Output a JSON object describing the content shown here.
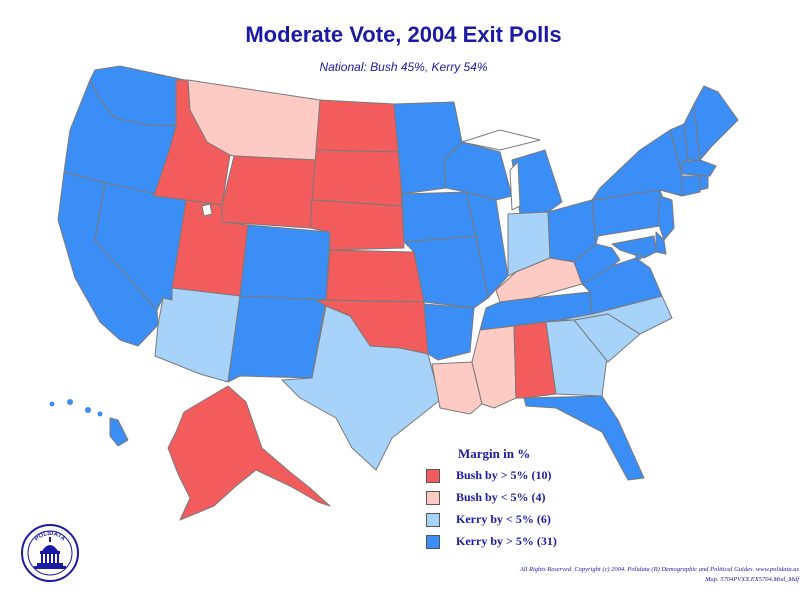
{
  "title": "Moderate Vote, 2004 Exit Polls",
  "subtitle": "National: Bush 45%, Kerry 54%",
  "legend": {
    "title": "Margin in %",
    "items": [
      {
        "label": "Bush by > 5% (10)",
        "color": "#f25c5c"
      },
      {
        "label": "Bush by < 5% (4)",
        "color": "#fecac4"
      },
      {
        "label": "Kerry by < 5% (6)",
        "color": "#a7d3fb"
      },
      {
        "label": "Kerry by > 5% (31)",
        "color": "#3b8ef5"
      }
    ]
  },
  "copyright": {
    "line1": "All Rights Reserved. Copyright (c) 2004. Polidata (R) Demographic and Political Guides. www.polidata.us",
    "line2": "Map. 5704PVXX.EX5704.Mod_Mdf"
  },
  "logo": {
    "text": "POLIDATA",
    "icon": "capitol-icon"
  },
  "categories": {
    "bush_strong": "#f25c5c",
    "bush_lean": "#fecac4",
    "kerry_lean": "#a7d3fb",
    "kerry_strong": "#3b8ef5"
  },
  "states": [
    {
      "abbr": "WA",
      "category": "kerry_strong"
    },
    {
      "abbr": "OR",
      "category": "kerry_strong"
    },
    {
      "abbr": "CA",
      "category": "kerry_strong"
    },
    {
      "abbr": "NV",
      "category": "kerry_strong"
    },
    {
      "abbr": "ID",
      "category": "bush_strong"
    },
    {
      "abbr": "MT",
      "category": "bush_lean"
    },
    {
      "abbr": "WY",
      "category": "bush_strong"
    },
    {
      "abbr": "UT",
      "category": "bush_strong"
    },
    {
      "abbr": "AZ",
      "category": "kerry_lean"
    },
    {
      "abbr": "CO",
      "category": "kerry_strong"
    },
    {
      "abbr": "NM",
      "category": "kerry_strong"
    },
    {
      "abbr": "ND",
      "category": "bush_strong"
    },
    {
      "abbr": "SD",
      "category": "bush_strong"
    },
    {
      "abbr": "NE",
      "category": "bush_strong"
    },
    {
      "abbr": "KS",
      "category": "bush_strong"
    },
    {
      "abbr": "OK",
      "category": "bush_strong"
    },
    {
      "abbr": "TX",
      "category": "kerry_lean"
    },
    {
      "abbr": "MN",
      "category": "kerry_strong"
    },
    {
      "abbr": "IA",
      "category": "kerry_strong"
    },
    {
      "abbr": "MO",
      "category": "kerry_strong"
    },
    {
      "abbr": "AR",
      "category": "kerry_strong"
    },
    {
      "abbr": "LA",
      "category": "bush_lean"
    },
    {
      "abbr": "WI",
      "category": "kerry_strong"
    },
    {
      "abbr": "IL",
      "category": "kerry_strong"
    },
    {
      "abbr": "MI",
      "category": "kerry_strong"
    },
    {
      "abbr": "IN",
      "category": "kerry_lean"
    },
    {
      "abbr": "OH",
      "category": "kerry_strong"
    },
    {
      "abbr": "KY",
      "category": "bush_lean"
    },
    {
      "abbr": "TN",
      "category": "kerry_strong"
    },
    {
      "abbr": "MS",
      "category": "bush_lean"
    },
    {
      "abbr": "AL",
      "category": "bush_strong"
    },
    {
      "abbr": "GA",
      "category": "kerry_lean"
    },
    {
      "abbr": "FL",
      "category": "kerry_strong"
    },
    {
      "abbr": "SC",
      "category": "kerry_lean"
    },
    {
      "abbr": "NC",
      "category": "kerry_lean"
    },
    {
      "abbr": "VA",
      "category": "kerry_strong"
    },
    {
      "abbr": "WV",
      "category": "kerry_strong"
    },
    {
      "abbr": "PA",
      "category": "kerry_strong"
    },
    {
      "abbr": "NY",
      "category": "kerry_strong"
    },
    {
      "abbr": "VT",
      "category": "kerry_strong"
    },
    {
      "abbr": "NH",
      "category": "kerry_strong"
    },
    {
      "abbr": "ME",
      "category": "kerry_strong"
    },
    {
      "abbr": "MA",
      "category": "kerry_strong"
    },
    {
      "abbr": "RI",
      "category": "kerry_strong"
    },
    {
      "abbr": "CT",
      "category": "kerry_strong"
    },
    {
      "abbr": "NJ",
      "category": "kerry_strong"
    },
    {
      "abbr": "DE",
      "category": "kerry_strong"
    },
    {
      "abbr": "MD",
      "category": "kerry_strong"
    },
    {
      "abbr": "DC",
      "category": "kerry_strong"
    },
    {
      "abbr": "AK",
      "category": "bush_strong"
    },
    {
      "abbr": "HI",
      "category": "kerry_strong"
    }
  ]
}
